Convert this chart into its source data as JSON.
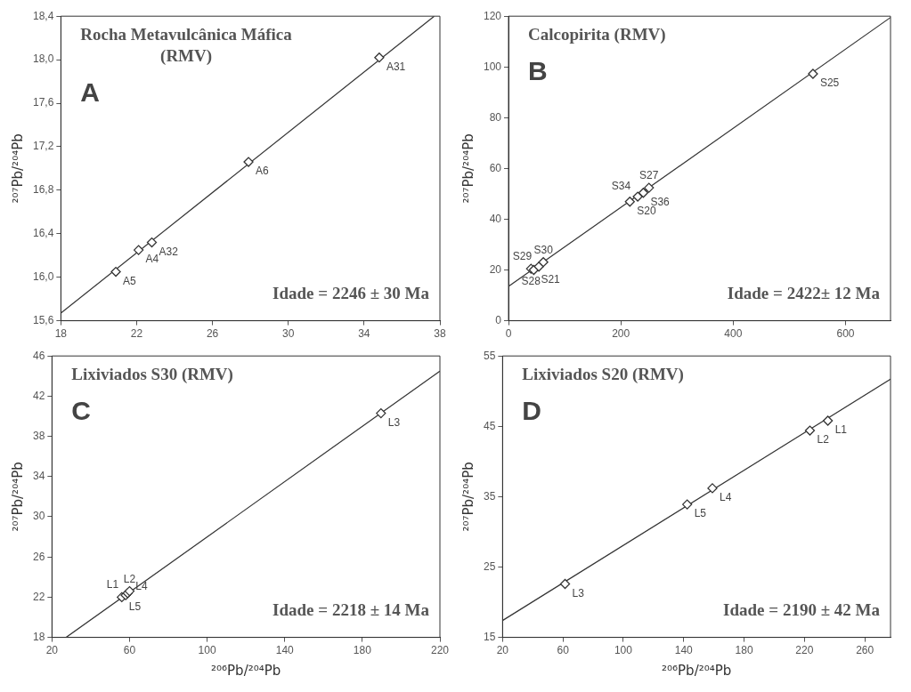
{
  "chart_data": [
    {
      "type": "scatter",
      "title": "Rocha Metavulcânica Máfica (RMV)",
      "ylabel": "²⁰⁷Pb/²⁰⁴Pb",
      "xlim": [
        18,
        38
      ],
      "xticks": [
        18,
        22,
        26,
        30,
        34,
        38
      ],
      "ylim": [
        15.6,
        18.4
      ],
      "yticks": [
        {
          "value": 15.6,
          "label": "15,6"
        },
        {
          "value": 16.0,
          "label": "16,0"
        },
        {
          "value": 16.4,
          "label": "16,4"
        },
        {
          "value": 16.8,
          "label": "16,8"
        },
        {
          "value": 17.2,
          "label": "17,2"
        },
        {
          "value": 17.6,
          "label": "17,6"
        },
        {
          "value": 18.0,
          "label": "18,0"
        },
        {
          "value": 18.4,
          "label": "18,4"
        }
      ],
      "series": [
        {
          "type": "scatter",
          "marker": "diamond",
          "color": "#333333",
          "x": [
            20.9,
            22.1,
            22.8,
            27.9,
            34.8
          ],
          "values": [
            16.05,
            16.25,
            16.32,
            17.06,
            18.02
          ],
          "value_labels": [
            "A5",
            "A4",
            "A32",
            "A6",
            "A31"
          ]
        },
        {
          "type": "line",
          "marker": "none",
          "color": "#333333",
          "x": [
            18,
            37.7
          ],
          "values": [
            15.67,
            18.4
          ]
        }
      ],
      "annotations": [
        "A",
        "Idade = 2246 ± 30 Ma"
      ]
    },
    {
      "type": "scatter",
      "title": "Calcopirita (RMV)",
      "ylabel": "²⁰⁷Pb/²⁰⁴Pb",
      "xlim": [
        0,
        680
      ],
      "xticks": [
        0,
        200,
        400,
        600
      ],
      "ylim": [
        0,
        120
      ],
      "yticks": [
        0,
        20,
        40,
        60,
        80,
        100,
        120
      ],
      "series": [
        {
          "type": "scatter",
          "marker": "diamond",
          "color": "#333333",
          "x": [
            40,
            45,
            54,
            62,
            216,
            230,
            240,
            250,
            542
          ],
          "values": [
            20.5,
            20.0,
            21.3,
            23.1,
            46.9,
            48.9,
            50.4,
            52.4,
            97.3
          ],
          "value_labels": [
            "S28",
            "S21",
            "S29",
            "S30",
            "S20",
            "S34",
            "S36",
            "S27",
            "S25"
          ]
        },
        {
          "type": "line",
          "marker": "none",
          "color": "#333333",
          "x": [
            0,
            680
          ],
          "values": [
            13.5,
            119.5
          ]
        }
      ],
      "annotations": [
        "B",
        "Idade = 2422± 12 Ma"
      ]
    },
    {
      "type": "scatter",
      "title": "Lixiviados S30 (RMV)",
      "xlabel": "²⁰⁶Pb/²⁰⁴Pb",
      "ylabel": "²⁰⁷Pb/²⁰⁴Pb",
      "xlim": [
        20,
        220
      ],
      "xticks": [
        20,
        60,
        100,
        140,
        180,
        220
      ],
      "ylim": [
        18,
        46
      ],
      "yticks": [
        18,
        22,
        26,
        30,
        34,
        38,
        42,
        46
      ],
      "series": [
        {
          "type": "scatter",
          "marker": "diamond",
          "color": "#333333",
          "x": [
            56,
            58,
            59,
            60,
            189.6
          ],
          "values": [
            22.0,
            22.2,
            22.4,
            22.6,
            40.3
          ],
          "value_labels": [
            "L5",
            "L1",
            "L4",
            "L2",
            "L3"
          ]
        },
        {
          "type": "line",
          "marker": "none",
          "color": "#333333",
          "x": [
            27.3,
            220
          ],
          "values": [
            18,
            44.5
          ]
        }
      ],
      "annotations": [
        "C",
        "Idade = 2218 ± 14 Ma"
      ]
    },
    {
      "type": "scatter",
      "title": "Lixiviados S20 (RMV)",
      "xlabel": "²⁰⁶Pb/²⁰⁴Pb",
      "ylabel": "²⁰⁷Pb/²⁰⁴Pb",
      "xlim": [
        20,
        277
      ],
      "xticks": [
        20,
        60,
        100,
        140,
        180,
        220,
        260
      ],
      "ylim": [
        15,
        55
      ],
      "yticks": [
        15,
        25,
        35,
        45,
        55
      ],
      "series": [
        {
          "type": "scatter",
          "marker": "diamond",
          "color": "#333333",
          "x": [
            61.4,
            142.3,
            159,
            223.6,
            235.5
          ],
          "values": [
            22.6,
            33.9,
            36.2,
            44.4,
            45.8
          ],
          "value_labels": [
            "L3",
            "L5",
            "L4",
            "L2",
            "L1"
          ]
        },
        {
          "type": "line",
          "marker": "none",
          "color": "#333333",
          "x": [
            20,
            277
          ],
          "values": [
            17.4,
            51.7
          ]
        }
      ],
      "annotations": [
        "D",
        "Idade = 2190 ± 42 Ma"
      ]
    }
  ]
}
